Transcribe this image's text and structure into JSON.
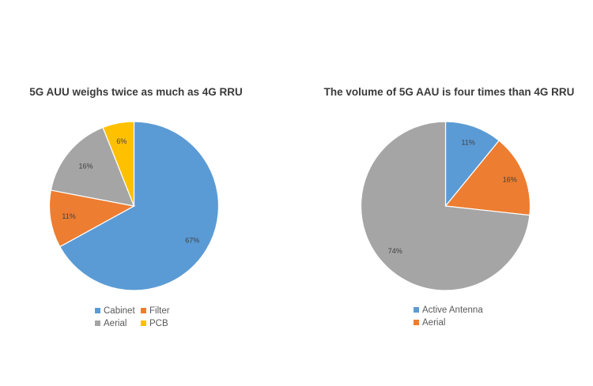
{
  "chart_data": [
    {
      "type": "pie",
      "title": "5G AUU weighs twice as much as 4G RRU",
      "slices": [
        {
          "label": "Cabinet",
          "value": 67,
          "display": "67%",
          "color": "#5b9bd5"
        },
        {
          "label": "Filter",
          "value": 11,
          "display": "11%",
          "color": "#ed7d31"
        },
        {
          "label": "Aerial",
          "value": 16,
          "display": "16%",
          "color": "#a5a5a5"
        },
        {
          "label": "PCB",
          "value": 6,
          "display": "6%",
          "color": "#ffc000"
        }
      ],
      "legend": [
        "Cabinet",
        "Filter",
        "Aerial",
        "PCB"
      ],
      "legend_position": "bottom"
    },
    {
      "type": "pie",
      "title": "The volume of 5G AAU is four times than 4G RRU",
      "slices": [
        {
          "label": "",
          "value": 11,
          "display": "11%",
          "color": "#5b9bd5"
        },
        {
          "label": "",
          "value": 16,
          "display": "16%",
          "color": "#ed7d31"
        },
        {
          "label": "",
          "value": 74,
          "display": "74%",
          "color": "#a5a5a5"
        }
      ],
      "legend": [
        "Active Antenna",
        "Aerial"
      ],
      "legend_colors": [
        "#5b9bd5",
        "#ed7d31"
      ],
      "legend_position": "bottom"
    }
  ]
}
